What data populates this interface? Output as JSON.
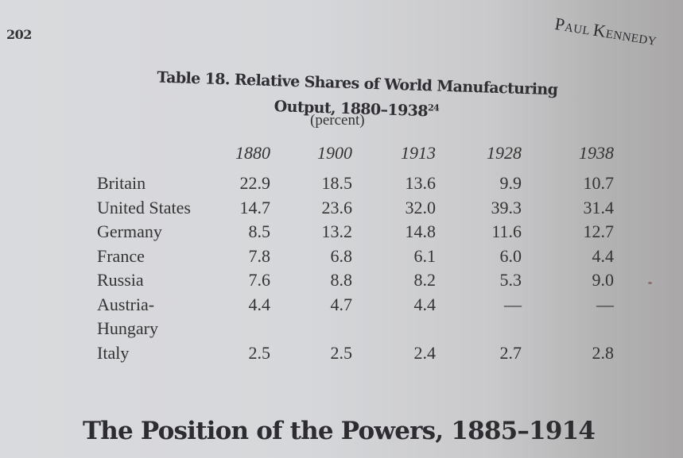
{
  "page": {
    "number": "202",
    "running_head": {
      "first": "Paul",
      "last": "Kennedy"
    }
  },
  "table": {
    "title_line1": "Table 18. Relative Shares of World Manufacturing",
    "title_line2": "Output, 1880–1938",
    "footnote_ref": "24",
    "subtitle": "(percent)",
    "columns": [
      "1880",
      "1900",
      "1913",
      "1928",
      "1938"
    ],
    "rows": [
      {
        "country": "Britain",
        "values": [
          "22.9",
          "18.5",
          "13.6",
          "9.9",
          "10.7"
        ]
      },
      {
        "country": "United States",
        "values": [
          "14.7",
          "23.6",
          "32.0",
          "39.3",
          "31.4"
        ]
      },
      {
        "country": "Germany",
        "values": [
          "8.5",
          "13.2",
          "14.8",
          "11.6",
          "12.7"
        ]
      },
      {
        "country": "France",
        "values": [
          "7.8",
          "6.8",
          "6.1",
          "6.0",
          "4.4"
        ]
      },
      {
        "country": "Russia",
        "values": [
          "7.6",
          "8.8",
          "8.2",
          "5.3",
          "9.0"
        ]
      },
      {
        "country": "Austria-",
        "values": [
          "4.4",
          "4.7",
          "4.4",
          "—",
          "—"
        ]
      },
      {
        "country": "Hungary",
        "values": [
          "",
          "",
          "",
          "",
          ""
        ]
      },
      {
        "country": "Italy",
        "values": [
          "2.5",
          "2.5",
          "2.4",
          "2.7",
          "2.8"
        ]
      }
    ]
  },
  "section_heading": "The Position of the Powers, 1885–1914"
}
